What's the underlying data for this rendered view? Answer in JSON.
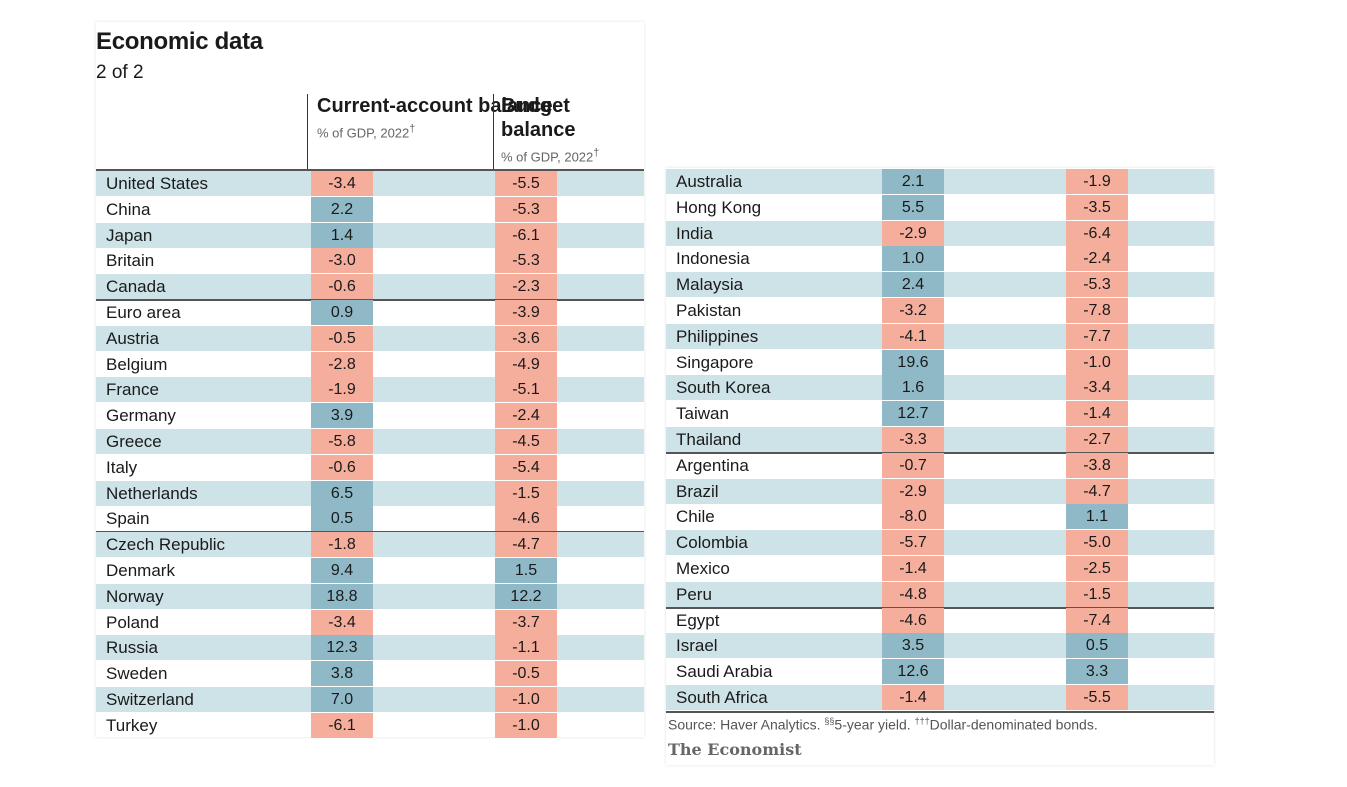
{
  "chart_data": {
    "type": "table",
    "title": "Economic data",
    "subtitle": "2 of 2",
    "columns": [
      {
        "name": "Current-account balance",
        "unit": "% of GDP, 2022",
        "mark": "†"
      },
      {
        "name": "Budget balance",
        "unit": "% of GDP, 2022",
        "mark": "†"
      }
    ],
    "left_table": [
      {
        "country": "United States",
        "ca": "-3.4",
        "bb": "-5.5"
      },
      {
        "country": "China",
        "ca": "2.2",
        "bb": "-5.3"
      },
      {
        "country": "Japan",
        "ca": "1.4",
        "bb": "-6.1"
      },
      {
        "country": "Britain",
        "ca": "-3.0",
        "bb": "-5.3"
      },
      {
        "country": "Canada",
        "ca": "-0.6",
        "bb": "-2.3"
      },
      {
        "country": "Euro area",
        "ca": "0.9",
        "bb": "-3.9"
      },
      {
        "country": "Austria",
        "ca": "-0.5",
        "bb": "-3.6"
      },
      {
        "country": "Belgium",
        "ca": "-2.8",
        "bb": "-4.9"
      },
      {
        "country": "France",
        "ca": "-1.9",
        "bb": "-5.1"
      },
      {
        "country": "Germany",
        "ca": "3.9",
        "bb": "-2.4"
      },
      {
        "country": "Greece",
        "ca": "-5.8",
        "bb": "-4.5"
      },
      {
        "country": "Italy",
        "ca": "-0.6",
        "bb": "-5.4"
      },
      {
        "country": "Netherlands",
        "ca": "6.5",
        "bb": "-1.5"
      },
      {
        "country": "Spain",
        "ca": "0.5",
        "bb": "-4.6"
      },
      {
        "country": "Czech Republic",
        "ca": "-1.8",
        "bb": "-4.7"
      },
      {
        "country": "Denmark",
        "ca": "9.4",
        "bb": "1.5"
      },
      {
        "country": "Norway",
        "ca": "18.8",
        "bb": "12.2"
      },
      {
        "country": "Poland",
        "ca": "-3.4",
        "bb": "-3.7"
      },
      {
        "country": "Russia",
        "ca": "12.3",
        "bb": "-1.1"
      },
      {
        "country": "Sweden",
        "ca": "3.8",
        "bb": "-0.5"
      },
      {
        "country": "Switzerland",
        "ca": "7.0",
        "bb": "-1.0"
      },
      {
        "country": "Turkey",
        "ca": "-6.1",
        "bb": "-1.0"
      }
    ],
    "right_table": [
      {
        "country": "Australia",
        "ca": "2.1",
        "bb": "-1.9"
      },
      {
        "country": "Hong Kong",
        "ca": "5.5",
        "bb": "-3.5"
      },
      {
        "country": "India",
        "ca": "-2.9",
        "bb": "-6.4"
      },
      {
        "country": "Indonesia",
        "ca": "1.0",
        "bb": "-2.4"
      },
      {
        "country": "Malaysia",
        "ca": "2.4",
        "bb": "-5.3"
      },
      {
        "country": "Pakistan",
        "ca": "-3.2",
        "bb": "-7.8"
      },
      {
        "country": "Philippines",
        "ca": "-4.1",
        "bb": "-7.7"
      },
      {
        "country": "Singapore",
        "ca": "19.6",
        "bb": "-1.0"
      },
      {
        "country": "South Korea",
        "ca": "1.6",
        "bb": "-3.4"
      },
      {
        "country": "Taiwan",
        "ca": "12.7",
        "bb": "-1.4"
      },
      {
        "country": "Thailand",
        "ca": "-3.3",
        "bb": "-2.7"
      },
      {
        "country": "Argentina",
        "ca": "-0.7",
        "bb": "-3.8"
      },
      {
        "country": "Brazil",
        "ca": "-2.9",
        "bb": "-4.7"
      },
      {
        "country": "Chile",
        "ca": "-8.0",
        "bb": "1.1"
      },
      {
        "country": "Colombia",
        "ca": "-5.7",
        "bb": "-5.0"
      },
      {
        "country": "Mexico",
        "ca": "-1.4",
        "bb": "-2.5"
      },
      {
        "country": "Peru",
        "ca": "-4.8",
        "bb": "-1.5"
      },
      {
        "country": "Egypt",
        "ca": "-4.6",
        "bb": "-7.4"
      },
      {
        "country": "Israel",
        "ca": "3.5",
        "bb": "0.5"
      },
      {
        "country": "Saudi Arabia",
        "ca": "12.6",
        "bb": "3.3"
      },
      {
        "country": "South Africa",
        "ca": "-1.4",
        "bb": "-5.5"
      }
    ],
    "group_breaks_left_after": [
      "Canada",
      "Spain"
    ],
    "group_breaks_right_after": [
      "Thailand",
      "Peru"
    ],
    "source_parts": [
      "Source: Haver Analytics. ",
      "§§",
      "5-year yield. ",
      "†††",
      "Dollar-denominated bonds."
    ],
    "brand": "The Economist",
    "colors": {
      "negative": "#f5ad9c",
      "positive": "#8fb9c7",
      "row_shade": "#cde3e8"
    }
  }
}
